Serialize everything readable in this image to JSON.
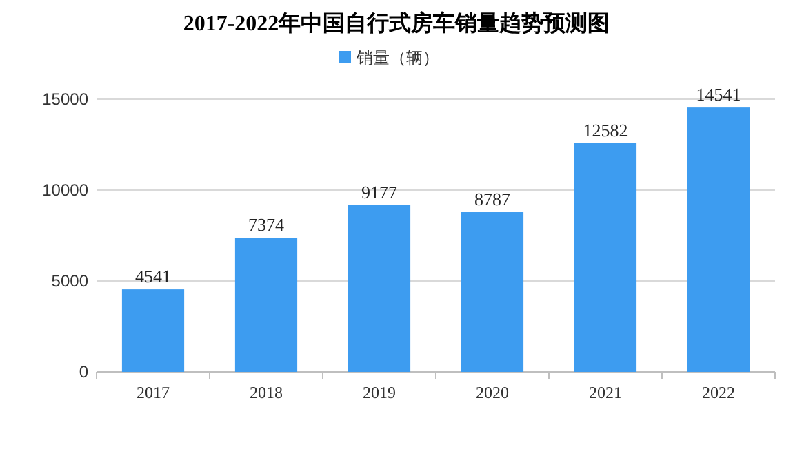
{
  "chart_data": {
    "type": "bar",
    "title": "2017-2022年中国自行式房车销量趋势预测图",
    "categories": [
      "2017",
      "2018",
      "2019",
      "2020",
      "2021",
      "2022"
    ],
    "series": [
      {
        "name": "销量（辆）",
        "color": "#3d9cf0",
        "values": [
          4541,
          7374,
          9177,
          8787,
          12582,
          14541
        ]
      }
    ],
    "ylim": [
      0,
      15000
    ],
    "yticks": [
      0,
      5000,
      10000,
      15000
    ],
    "grid": "y",
    "legend": "top",
    "data_labels": true
  }
}
